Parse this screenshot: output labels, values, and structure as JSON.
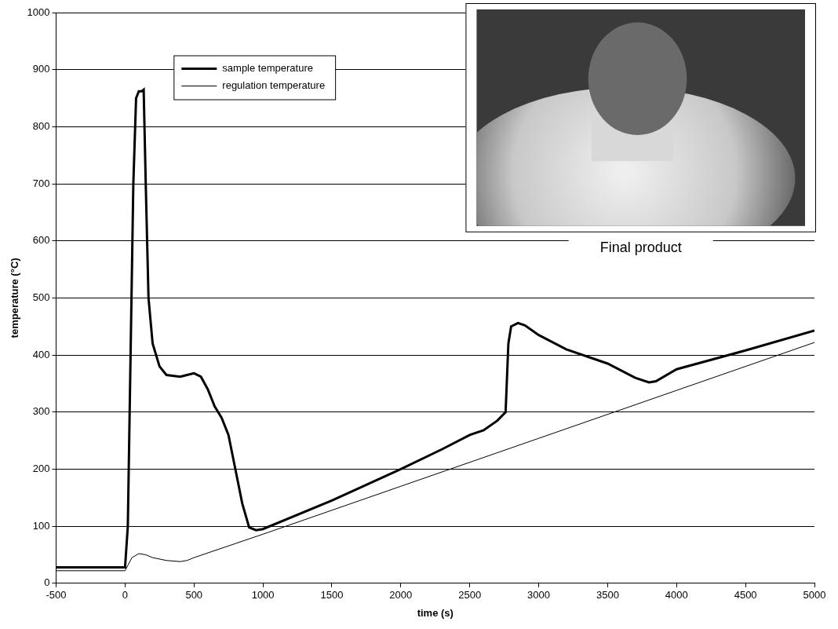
{
  "chart_data": {
    "type": "line",
    "x_label": "time (s)",
    "y_label": "temperature (°C)",
    "annotations": [
      "Final product"
    ],
    "xlim": [
      -500,
      5000
    ],
    "xticks": [
      -500,
      0,
      500,
      1000,
      1500,
      2000,
      2500,
      3000,
      3500,
      4000,
      4500,
      5000
    ],
    "ylim": [
      0,
      1000
    ],
    "yticks": [
      0,
      100,
      200,
      300,
      400,
      500,
      600,
      700,
      800,
      900,
      1000
    ],
    "grid": "y",
    "legend": "upper left",
    "series": [
      {
        "name": "sample temperature",
        "color": "#000000",
        "marker": "none",
        "line_style": "solid",
        "x": [
          -500,
          -300,
          0,
          20,
          40,
          60,
          80,
          100,
          120,
          135,
          150,
          170,
          200,
          250,
          300,
          400,
          450,
          500,
          550,
          600,
          650,
          700,
          750,
          800,
          850,
          900,
          950,
          1000,
          1500,
          2000,
          2300,
          2500,
          2600,
          2700,
          2760,
          2780,
          2800,
          2850,
          2900,
          3000,
          3200,
          3500,
          3700,
          3800,
          3850,
          4000,
          4500,
          5000
        ],
        "values": [
          28,
          28,
          28,
          100,
          400,
          700,
          850,
          862,
          862,
          865,
          700,
          500,
          420,
          380,
          365,
          362,
          365,
          368,
          362,
          340,
          310,
          290,
          260,
          200,
          140,
          98,
          93,
          95,
          145,
          200,
          235,
          260,
          268,
          285,
          300,
          420,
          450,
          456,
          452,
          435,
          410,
          385,
          360,
          352,
          354,
          375,
          408,
          443
        ]
      },
      {
        "name": "regulation temperature",
        "color": "#000000",
        "marker": "none",
        "line_style": "solid",
        "x": [
          -500,
          0,
          50,
          100,
          150,
          200,
          300,
          400,
          450,
          500,
          1000,
          2000,
          3000,
          4000,
          5000
        ],
        "values": [
          22,
          22,
          45,
          52,
          50,
          45,
          40,
          38,
          40,
          45,
          86,
          170,
          254,
          338,
          422
        ]
      }
    ]
  }
}
